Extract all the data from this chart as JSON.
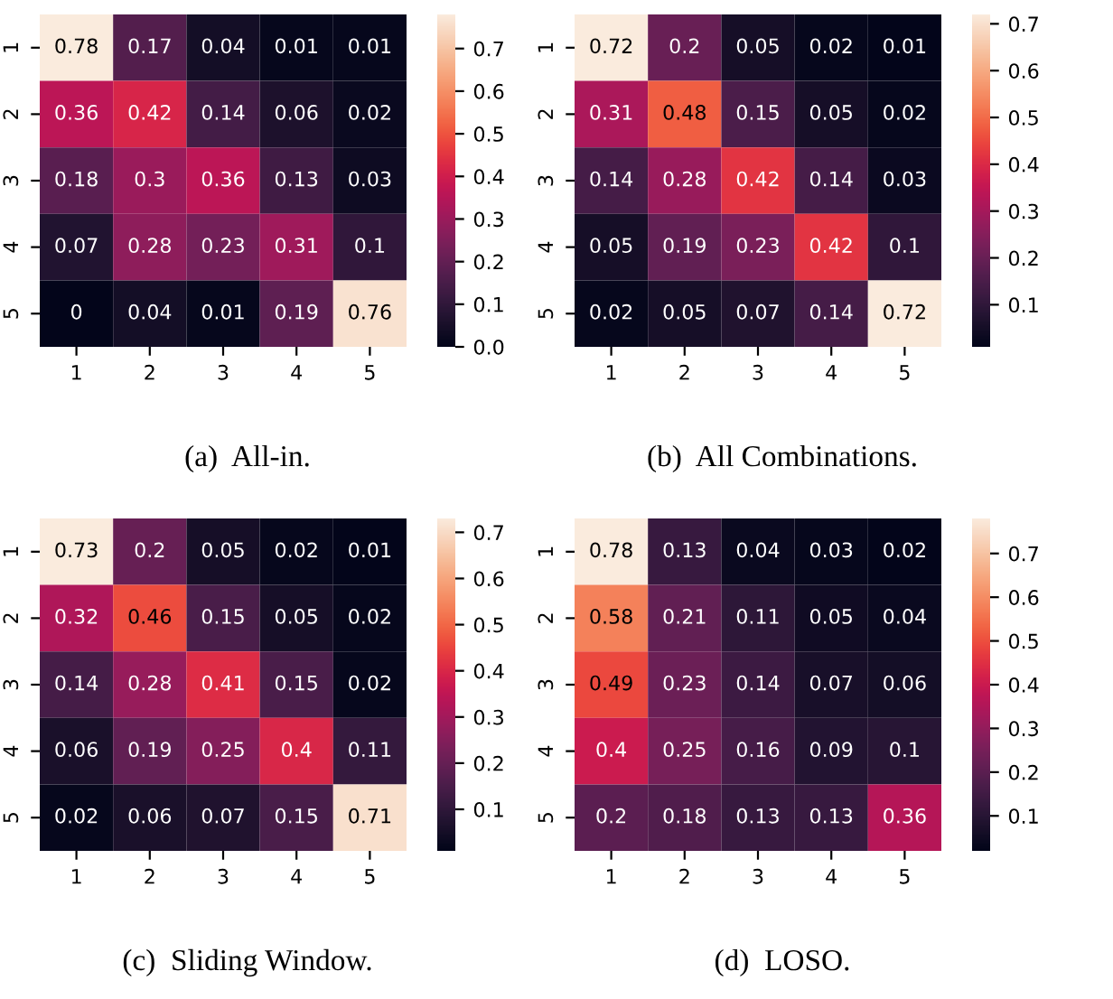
{
  "chart_data": [
    {
      "type": "heatmap",
      "title": "(a)  All-in.",
      "categories": [
        "1",
        "2",
        "3",
        "4",
        "5"
      ],
      "y_categories": [
        "1",
        "2",
        "3",
        "4",
        "5"
      ],
      "cells": [
        [
          0.78,
          0.17,
          0.04,
          0.01,
          0.01
        ],
        [
          0.36,
          0.42,
          0.14,
          0.06,
          0.02
        ],
        [
          0.18,
          0.3,
          0.36,
          0.13,
          0.03
        ],
        [
          0.07,
          0.28,
          0.23,
          0.31,
          0.1
        ],
        [
          0,
          0.04,
          0.01,
          0.19,
          0.76
        ]
      ],
      "clim": [
        0,
        0.78
      ],
      "cticks": [
        {
          "value": 0,
          "label": "0.0"
        },
        0.1,
        0.2,
        0.3,
        0.4,
        0.5,
        0.6,
        0.7
      ],
      "data_labels": true
    },
    {
      "type": "heatmap",
      "title": "(b)  All Combinations.",
      "categories": [
        "1",
        "2",
        "3",
        "4",
        "5"
      ],
      "y_categories": [
        "1",
        "2",
        "3",
        "4",
        "5"
      ],
      "cells": [
        [
          0.72,
          0.2,
          0.05,
          0.02,
          0.01
        ],
        [
          0.31,
          0.48,
          0.15,
          0.05,
          0.02
        ],
        [
          0.14,
          0.28,
          0.42,
          0.14,
          0.03
        ],
        [
          0.05,
          0.19,
          0.23,
          0.42,
          0.1
        ],
        [
          0.02,
          0.05,
          0.07,
          0.14,
          0.72
        ]
      ],
      "clim": [
        0.01,
        0.72
      ],
      "cticks": [
        0.1,
        0.2,
        0.3,
        0.4,
        0.5,
        0.6,
        0.7
      ],
      "data_labels": true
    },
    {
      "type": "heatmap",
      "title": "(c)  Sliding Window.",
      "categories": [
        "1",
        "2",
        "3",
        "4",
        "5"
      ],
      "y_categories": [
        "1",
        "2",
        "3",
        "4",
        "5"
      ],
      "cells": [
        [
          0.73,
          0.2,
          0.05,
          0.02,
          0.01
        ],
        [
          0.32,
          0.46,
          0.15,
          0.05,
          0.02
        ],
        [
          0.14,
          0.28,
          0.41,
          0.15,
          0.02
        ],
        [
          0.06,
          0.19,
          0.25,
          0.4,
          0.11
        ],
        [
          0.02,
          0.06,
          0.07,
          0.15,
          0.71
        ]
      ],
      "clim": [
        0.01,
        0.73
      ],
      "cticks": [
        0.1,
        0.2,
        0.3,
        0.4,
        0.5,
        0.6,
        0.7
      ],
      "data_labels": true
    },
    {
      "type": "heatmap",
      "title": "(d)  LOSO.",
      "categories": [
        "1",
        "2",
        "3",
        "4",
        "5"
      ],
      "y_categories": [
        "1",
        "2",
        "3",
        "4",
        "5"
      ],
      "cells": [
        [
          0.78,
          0.13,
          0.04,
          0.03,
          0.02
        ],
        [
          0.58,
          0.21,
          0.11,
          0.05,
          0.04
        ],
        [
          0.49,
          0.23,
          0.14,
          0.07,
          0.06
        ],
        [
          0.4,
          0.25,
          0.16,
          0.09,
          0.1
        ],
        [
          0.2,
          0.18,
          0.13,
          0.13,
          0.36
        ]
      ],
      "clim": [
        0.02,
        0.78
      ],
      "cticks": [
        0.1,
        0.2,
        0.3,
        0.4,
        0.5,
        0.6,
        0.7
      ],
      "data_labels": true
    }
  ]
}
